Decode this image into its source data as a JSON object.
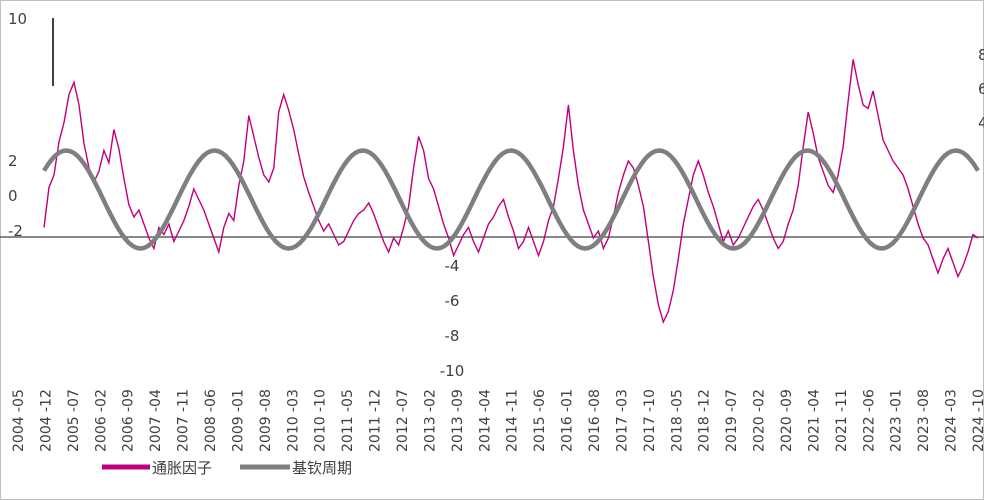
{
  "chart_data": {
    "type": "line",
    "title": "",
    "xlabel": "",
    "ylabel": "",
    "ylim": [
      -10,
      10
    ],
    "y_ticks_left_top": [
      10,
      2,
      0,
      -2
    ],
    "y_ticks_center": [
      -4,
      -6,
      -8,
      -10
    ],
    "right_axis_partial_ticks": [
      "8",
      "6",
      "4"
    ],
    "x_tick_labels": [
      "-05",
      "-12",
      "-07",
      "-02",
      "-09",
      "-04",
      "-11",
      "-06",
      "-01",
      "-08",
      "-03",
      "-10",
      "-05",
      "-12",
      "-07",
      "-02",
      "-09",
      "-04",
      "-11",
      "-06",
      "-01",
      "-08",
      "-03",
      "-10",
      "-05",
      "-12",
      "-07",
      "-02",
      "-09",
      "-04",
      "-11",
      "-06",
      "-01",
      "-08",
      "-03",
      "-10"
    ],
    "x_axis_year_labels": [
      "2004",
      "2004",
      "2005",
      "2006",
      "2006",
      "2007",
      "2007",
      "2008",
      "2009",
      "2009",
      "2010",
      "2010",
      "2011",
      "2011",
      "2012",
      "2013",
      "2013",
      "2014",
      "2014",
      "2015",
      "2016",
      "2016",
      "2017",
      "2017",
      "2018",
      "2018",
      "2019",
      "2020",
      "2020",
      "2021",
      "2021",
      "2022",
      "2023",
      "2023",
      "2024",
      "2024"
    ],
    "legend_position": "bottom-left",
    "series": [
      {
        "name": "通胀因子",
        "color": "#c0007a",
        "values": [
          -1.8,
          0.5,
          1.2,
          3.1,
          4.2,
          5.8,
          6.5,
          5.2,
          3.0,
          1.6,
          0.8,
          1.4,
          2.6,
          1.9,
          3.8,
          2.7,
          1.0,
          -0.5,
          -1.2,
          -0.8,
          -1.6,
          -2.4,
          -3.0,
          -1.8,
          -2.2,
          -1.6,
          -2.6,
          -2.0,
          -1.4,
          -0.6,
          0.4,
          -0.2,
          -0.8,
          -1.6,
          -2.4,
          -3.2,
          -1.8,
          -1.0,
          -1.4,
          0.6,
          2.0,
          4.6,
          3.4,
          2.2,
          1.2,
          0.8,
          1.6,
          4.8,
          5.8,
          4.9,
          3.8,
          2.4,
          1.1,
          0.2,
          -0.6,
          -1.4,
          -2.0,
          -1.6,
          -2.2,
          -2.8,
          -2.6,
          -2.0,
          -1.4,
          -1.0,
          -0.8,
          -0.4,
          -1.0,
          -1.8,
          -2.6,
          -3.2,
          -2.4,
          -2.8,
          -1.8,
          -0.6,
          1.6,
          3.4,
          2.6,
          1.0,
          0.4,
          -0.6,
          -1.6,
          -2.4,
          -3.4,
          -2.8,
          -2.2,
          -1.8,
          -2.6,
          -3.2,
          -2.4,
          -1.6,
          -1.2,
          -0.6,
          -0.2,
          -1.2,
          -2.0,
          -3.0,
          -2.6,
          -1.8,
          -2.6,
          -3.4,
          -2.6,
          -1.4,
          -0.6,
          1.0,
          2.8,
          5.2,
          2.6,
          0.6,
          -0.8,
          -1.6,
          -2.4,
          -2.0,
          -3.0,
          -2.4,
          -1.2,
          0.2,
          1.2,
          2.0,
          1.6,
          0.6,
          -0.6,
          -2.6,
          -4.6,
          -6.2,
          -7.2,
          -6.6,
          -5.4,
          -3.6,
          -1.6,
          -0.2,
          1.2,
          2.0,
          1.2,
          0.2,
          -0.6,
          -1.6,
          -2.6,
          -2.0,
          -2.8,
          -2.4,
          -1.8,
          -1.2,
          -0.6,
          -0.2,
          -0.8,
          -1.6,
          -2.4,
          -3.0,
          -2.6,
          -1.6,
          -0.8,
          0.6,
          2.8,
          4.8,
          3.6,
          2.2,
          1.4,
          0.6,
          0.2,
          1.2,
          2.8,
          5.4,
          7.8,
          6.4,
          5.2,
          5.0,
          6.0,
          4.6,
          3.2,
          2.6,
          2.0,
          1.6,
          1.2,
          0.4,
          -0.6,
          -1.6,
          -2.4,
          -2.8,
          -3.6,
          -4.4,
          -3.6,
          -3.0,
          -3.8,
          -4.6,
          -4.0,
          -3.2,
          -2.2,
          -2.4
        ]
      },
      {
        "name": "基钦周期",
        "color": "#7f7f7f",
        "values": []
      }
    ],
    "kitchin_cycle": {
      "period_months": 40,
      "amplitude": 2.8,
      "offset": -0.2,
      "phase_peak_index": 6
    }
  },
  "legend": {
    "item_inflation_label": "通胀因子",
    "item_kitchin_label": "基钦周期"
  }
}
